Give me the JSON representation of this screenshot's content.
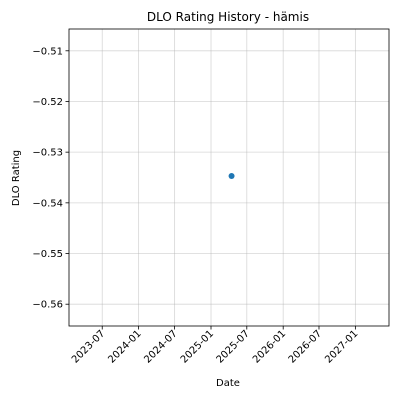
{
  "chart_data": {
    "type": "scatter",
    "title": "DLO Rating History - hämis",
    "xlabel": "Date",
    "ylabel": "DLO Rating",
    "x_is_date": true,
    "xlim": [
      "2023-01-14",
      "2027-06-20"
    ],
    "ylim": [
      -0.5643,
      -0.5057
    ],
    "xticks": [
      "2023-07",
      "2024-01",
      "2024-07",
      "2025-01",
      "2025-07",
      "2026-01",
      "2026-07",
      "2027-01"
    ],
    "yticks": [
      -0.51,
      -0.52,
      -0.53,
      -0.54,
      -0.55,
      -0.56
    ],
    "ytick_labels": [
      "−0.51",
      "−0.52",
      "−0.53",
      "−0.54",
      "−0.55",
      "−0.56"
    ],
    "grid": true,
    "series": [
      {
        "color": "#1f77b4",
        "points": [
          {
            "x": "2025-04-15",
            "y": -0.5347
          }
        ]
      }
    ]
  }
}
